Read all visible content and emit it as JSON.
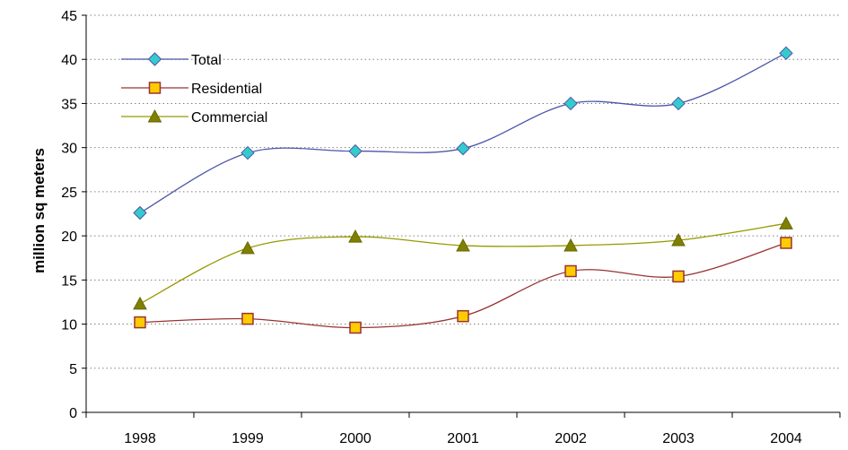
{
  "chart_data": {
    "type": "line",
    "title": "",
    "xlabel": "",
    "ylabel": "million sq meters",
    "categories": [
      "1998",
      "1999",
      "2000",
      "2001",
      "2002",
      "2003",
      "2004"
    ],
    "ylim": [
      0,
      45
    ],
    "yticks": [
      0,
      5,
      10,
      15,
      20,
      25,
      30,
      35,
      40,
      45
    ],
    "grid": "horizontal dotted",
    "legend_position": "top-left",
    "smooth": true,
    "series": [
      {
        "name": "Total",
        "values": [
          22.6,
          29.4,
          29.6,
          29.9,
          35.0,
          35.0,
          40.7
        ],
        "color": "#4a56a8",
        "marker": "diamond",
        "marker_color": "#33cccc"
      },
      {
        "name": "Residential",
        "values": [
          10.2,
          10.6,
          9.6,
          10.9,
          16.0,
          15.4,
          19.2
        ],
        "color": "#993333",
        "marker": "square",
        "marker_color": "#ffcc00"
      },
      {
        "name": "Commercial",
        "values": [
          12.3,
          18.6,
          19.9,
          18.9,
          18.9,
          19.5,
          21.4
        ],
        "color": "#999900",
        "marker": "triangle",
        "marker_color": "#808000"
      }
    ]
  }
}
